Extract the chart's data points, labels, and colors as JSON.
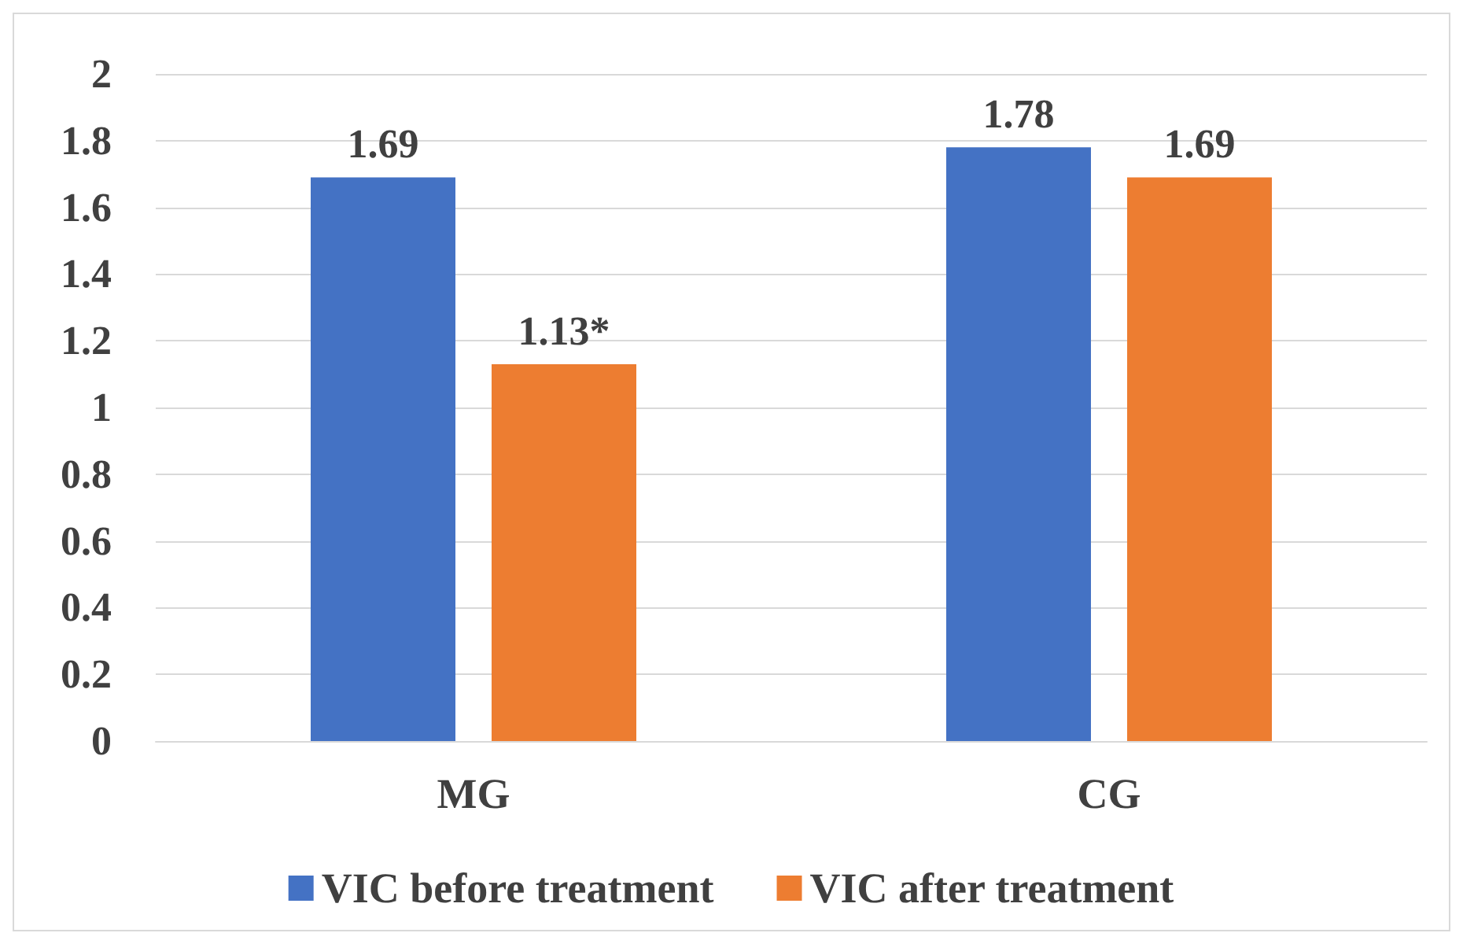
{
  "chart_data": {
    "type": "bar",
    "categories": [
      "MG",
      "CG"
    ],
    "series": [
      {
        "name": "VIC before treatment",
        "color": "#4472c4",
        "values": [
          1.69,
          1.78
        ],
        "value_labels": [
          "1.69",
          "1.78"
        ]
      },
      {
        "name": "VIC after treatment",
        "color": "#ed7d31",
        "values": [
          1.13,
          1.69
        ],
        "value_labels": [
          "1.13*",
          "1.69"
        ]
      }
    ],
    "ylim": [
      0,
      2
    ],
    "yticks": [
      0,
      0.2,
      0.4,
      0.6,
      0.8,
      1,
      1.2,
      1.4,
      1.6,
      1.8,
      2
    ],
    "grid": "y",
    "legend": "bottom"
  }
}
